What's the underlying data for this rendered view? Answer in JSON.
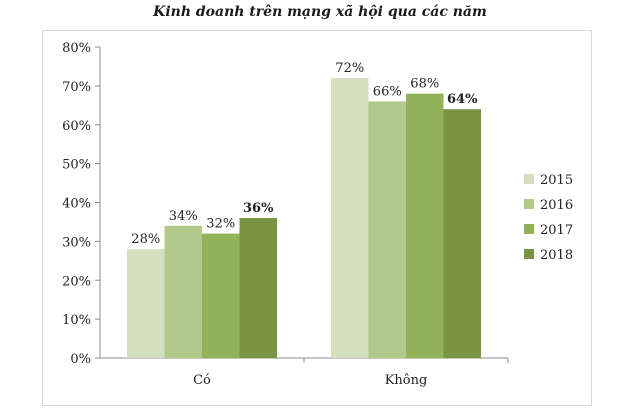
{
  "chart_data": {
    "type": "bar",
    "title": "Kinh doanh trên mạng xã hội qua các năm",
    "xlabel": "",
    "ylabel": "",
    "categories": [
      "Có",
      "Không"
    ],
    "series": [
      {
        "name": "2015",
        "values": [
          28,
          72
        ],
        "labels": [
          "28%",
          "72%"
        ],
        "color": "#d3dfbe"
      },
      {
        "name": "2016",
        "values": [
          34,
          66
        ],
        "labels": [
          "34%",
          "66%"
        ],
        "color": "#b1c98a"
      },
      {
        "name": "2017",
        "values": [
          32,
          68
        ],
        "labels": [
          "32%",
          "68%"
        ],
        "color": "#92b25a"
      },
      {
        "name": "2018",
        "values": [
          36,
          64
        ],
        "labels": [
          "36%",
          "64%"
        ],
        "color": "#7a9444",
        "labels_bold": true
      }
    ],
    "ylim": [
      0,
      80
    ],
    "yticks": [
      "0%",
      "10%",
      "20%",
      "30%",
      "40%",
      "50%",
      "60%",
      "70%",
      "80%"
    ],
    "grid": false,
    "legend": "right"
  }
}
